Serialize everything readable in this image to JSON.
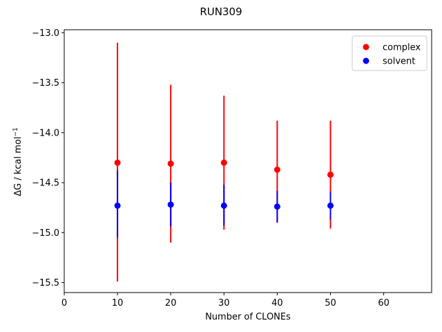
{
  "chart_data": {
    "type": "scatter",
    "title": "RUN309",
    "xlabel": "Number of CLONEs",
    "ylabel_prefix": "ΔG / kcal mol",
    "ylabel_superscript": "−1",
    "xlim": [
      0,
      69
    ],
    "ylim": [
      -15.6,
      -12.97
    ],
    "xticks": [
      0,
      10,
      20,
      30,
      40,
      50,
      60
    ],
    "xtick_labels": [
      "0",
      "10",
      "20",
      "30",
      "40",
      "50",
      "60"
    ],
    "yticks": [
      -13.0,
      -13.5,
      -14.0,
      -14.5,
      -15.0,
      -15.5
    ],
    "ytick_labels": [
      "−13.0",
      "−13.5",
      "−14.0",
      "−14.5",
      "−15.0",
      "−15.5"
    ],
    "legend_position": "top-right",
    "series": [
      {
        "name": "complex",
        "color": "#ff0000",
        "x": [
          10,
          20,
          30,
          40,
          50
        ],
        "y": [
          -14.3,
          -14.31,
          -14.3,
          -14.37,
          -14.42
        ],
        "err_low": [
          -15.49,
          -15.1,
          -14.97,
          -14.9,
          -14.96
        ],
        "err_high": [
          -13.1,
          -13.52,
          -13.63,
          -13.88,
          -13.88
        ]
      },
      {
        "name": "solvent",
        "color": "#0000ff",
        "x": [
          10,
          20,
          30,
          40,
          50
        ],
        "y": [
          -14.73,
          -14.72,
          -14.73,
          -14.74,
          -14.73
        ],
        "err_low": [
          -15.05,
          -14.94,
          -14.93,
          -14.9,
          -14.87
        ],
        "err_high": [
          -14.38,
          -14.5,
          -14.52,
          -14.58,
          -14.59
        ]
      }
    ]
  }
}
